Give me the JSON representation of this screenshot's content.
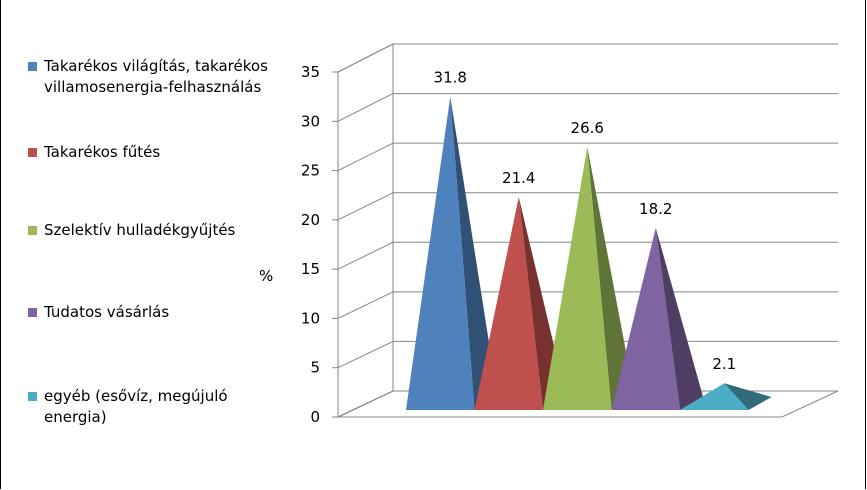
{
  "chart_data": {
    "type": "bar",
    "shape": "3d-pyramid",
    "title": "",
    "xlabel": "",
    "ylabel": "%",
    "ylim": [
      0,
      35
    ],
    "yticks": [
      0,
      5,
      10,
      15,
      20,
      25,
      30,
      35
    ],
    "grid": true,
    "legend_position": "left",
    "series": [
      {
        "name": "Takarékos világítás, takarékos villamosenergia-felhasználás",
        "value": 31.8,
        "label": "31.8",
        "color": "#4f81bd"
      },
      {
        "name": "Takarékos fűtés",
        "value": 21.4,
        "label": "21.4",
        "color": "#c0504d"
      },
      {
        "name": "Szelektív hulladékgyűjtés",
        "value": 26.6,
        "label": "26.6",
        "color": "#9bbb59"
      },
      {
        "name": "Tudatos vásárlás",
        "value": 18.2,
        "label": "18.2",
        "color": "#8064a2"
      },
      {
        "name": "egyéb (esővíz, megújuló energia)",
        "value": 2.1,
        "label": "2.1",
        "color": "#4bacc6"
      }
    ]
  }
}
